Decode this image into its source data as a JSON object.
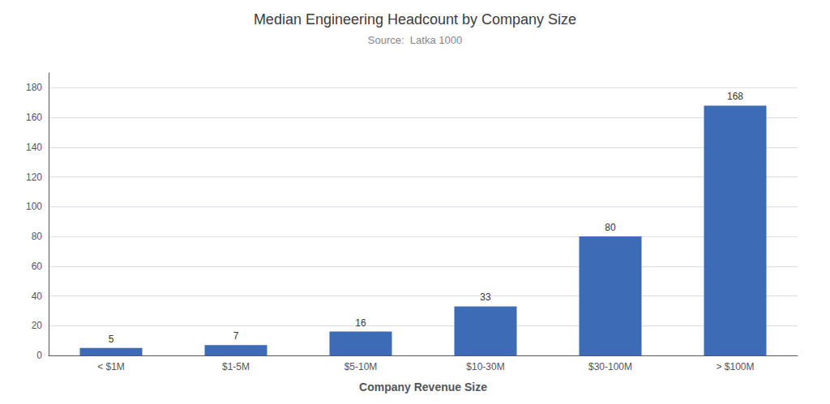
{
  "chart_data": {
    "type": "bar",
    "title": "Median Engineering Headcount by Company Size",
    "subtitle": "Source:  Latka 1000",
    "xlabel": "Company Revenue Size",
    "categories": [
      "< $1M",
      "$1-5M",
      "$5-10M",
      "$10-30M",
      "$30-100M",
      "> $100M"
    ],
    "values": [
      5,
      7,
      16,
      33,
      80,
      168
    ],
    "color": "#3D6BB5",
    "ylim": [
      0,
      190
    ],
    "yticks": [
      0,
      20,
      40,
      60,
      80,
      100,
      120,
      140,
      160,
      180
    ],
    "grid": true,
    "data_labels": true
  }
}
